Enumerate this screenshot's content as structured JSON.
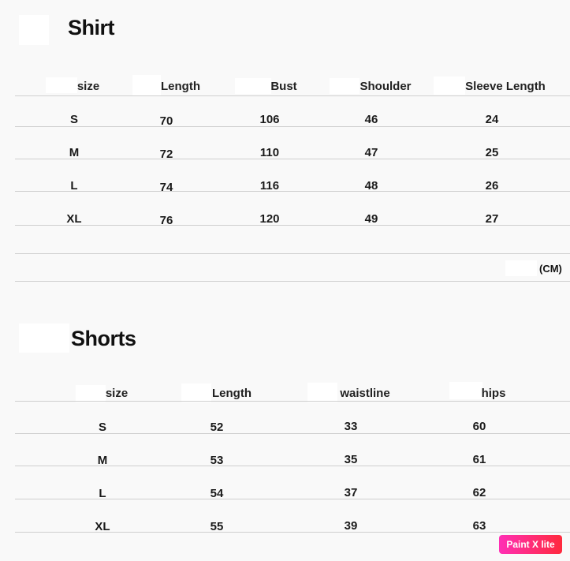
{
  "shirt": {
    "title": "Shirt",
    "headers": [
      "size",
      "Length",
      "Bust",
      "Shoulder",
      "Sleeve Length"
    ],
    "rows": [
      [
        "S",
        "70",
        "106",
        "46",
        "24"
      ],
      [
        "M",
        "72",
        "110",
        "47",
        "25"
      ],
      [
        "L",
        "74",
        "116",
        "48",
        "26"
      ],
      [
        "XL",
        "76",
        "120",
        "49",
        "27"
      ]
    ],
    "unit": "(CM)"
  },
  "shorts": {
    "title": "Shorts",
    "headers": [
      "size",
      "Length",
      "waistline",
      "hips"
    ],
    "rows": [
      [
        "S",
        "52",
        "33",
        "60"
      ],
      [
        "M",
        "53",
        "35",
        "61"
      ],
      [
        "L",
        "54",
        "37",
        "62"
      ],
      [
        "XL",
        "55",
        "39",
        "63"
      ]
    ]
  },
  "watermark": "Paint X lite"
}
